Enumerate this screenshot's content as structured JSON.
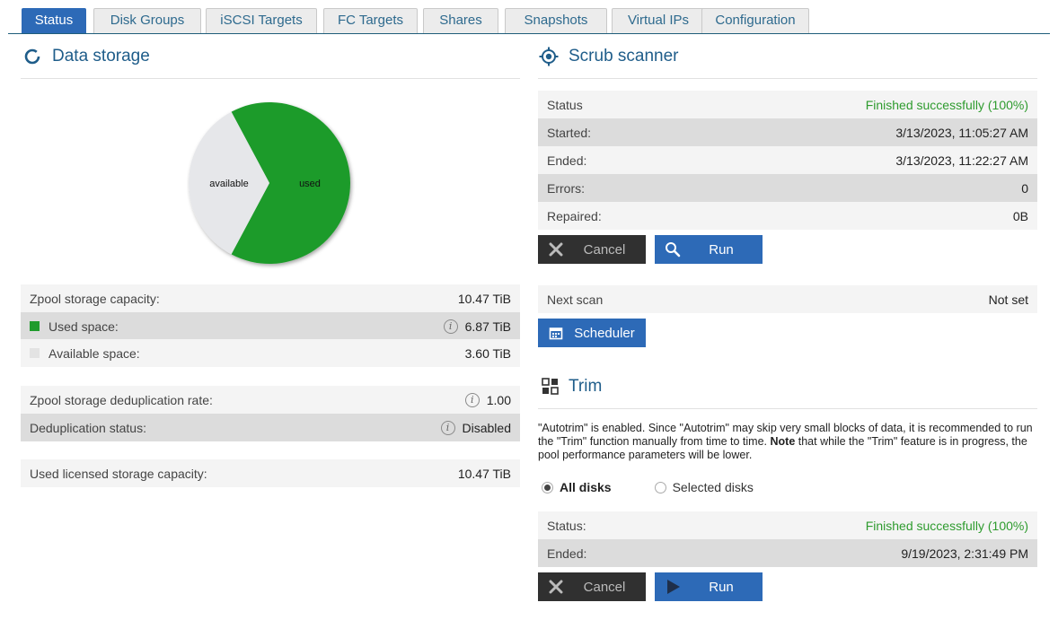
{
  "tabs": [
    {
      "label": "Status"
    },
    {
      "label": "Disk Groups"
    },
    {
      "label": "iSCSI Targets"
    },
    {
      "label": "FC Targets"
    },
    {
      "label": "Shares"
    },
    {
      "label": "Snapshots"
    },
    {
      "label": "Virtual IPs"
    },
    {
      "label": "Configuration"
    }
  ],
  "active_tab": "Status",
  "data_storage": {
    "title": "Data storage",
    "chart_data": {
      "type": "pie",
      "labels": [
        "available",
        "used"
      ],
      "values": [
        3.6,
        6.87
      ],
      "unit": "TiB",
      "colors": [
        "#e6e7ea",
        "#1f9b2c"
      ]
    },
    "capacity": {
      "label": "Zpool storage capacity:",
      "value": "10.47 TiB"
    },
    "used": {
      "label": "Used space:",
      "value": "6.87 TiB"
    },
    "available": {
      "label": "Available space:",
      "value": "3.60 TiB"
    },
    "dedup_rate": {
      "label": "Zpool storage deduplication rate:",
      "value": "1.00"
    },
    "dedup_status": {
      "label": "Deduplication status:",
      "value": "Disabled"
    },
    "licensed": {
      "label": "Used licensed storage capacity:",
      "value": "10.47 TiB"
    }
  },
  "scrub": {
    "title": "Scrub scanner",
    "status": {
      "label": "Status",
      "value": "Finished successfully (100%)"
    },
    "started": {
      "label": "Started:",
      "value": "3/13/2023, 11:05:27 AM"
    },
    "ended": {
      "label": "Ended:",
      "value": "3/13/2023, 11:22:27 AM"
    },
    "errors": {
      "label": "Errors:",
      "value": "0"
    },
    "repaired": {
      "label": "Repaired:",
      "value": "0B"
    },
    "cancel_label": "Cancel",
    "run_label": "Run",
    "next_scan": {
      "label": "Next scan",
      "value": "Not set"
    },
    "scheduler_label": "Scheduler"
  },
  "trim": {
    "title": "Trim",
    "desc_a": "\"Autotrim\" is enabled. Since \"Autotrim\" may skip very small blocks of data, it is recommended to run the \"Trim\" function manually from time to time. ",
    "desc_bold": "Note",
    "desc_b": " that while the \"Trim\" feature is in progress, the pool performance parameters will be lower.",
    "option_all": "All disks",
    "option_selected": "Selected disks",
    "status": {
      "label": "Status:",
      "value": "Finished successfully (100%)"
    },
    "ended": {
      "label": "Ended:",
      "value": "9/19/2023, 2:31:49 PM"
    },
    "cancel_label": "Cancel",
    "run_label": "Run"
  },
  "colors": {
    "accent": "#2d6ab7",
    "used": "#1f9b2c",
    "available": "#e6e7ea",
    "success": "#2e9b2e"
  }
}
